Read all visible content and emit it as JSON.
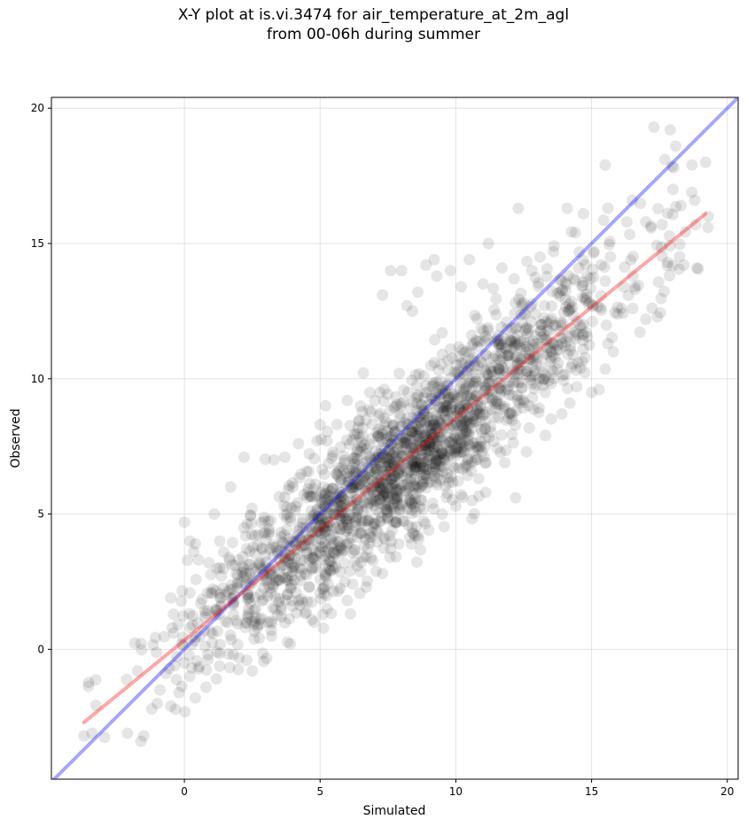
{
  "chart_data": {
    "type": "scatter",
    "title_lines": [
      "X-Y plot at is.vi.3474 for air_temperature_at_2m_agl",
      "from 00-06h during summer"
    ],
    "xlabel": "Simulated",
    "ylabel": "Observed",
    "xlim": [
      -4.9,
      20.4
    ],
    "ylim": [
      -4.8,
      20.4
    ],
    "xticks": [
      0,
      5,
      10,
      15,
      20
    ],
    "yticks": [
      0,
      5,
      10,
      15,
      20
    ],
    "grid": true,
    "point_color": "#000000",
    "point_opacity": 0.1,
    "reference_line": {
      "label": "1:1",
      "color": "#0000ff",
      "x": [
        -4.9,
        20.4
      ],
      "y": [
        -4.9,
        20.4
      ]
    },
    "fit_line": {
      "color": "#ff0000",
      "x": [
        -3.7,
        19.2
      ],
      "y": [
        -2.7,
        16.1
      ]
    },
    "point_model": {
      "n": 2000,
      "x_mean": 8.2,
      "x_sd": 3.9,
      "x_min": -4.0,
      "x_max": 19.3,
      "slope": 0.82,
      "intercept": 0.35,
      "residual_sd": 1.35
    },
    "points": [
      [
        -3.7,
        -3.2
      ],
      [
        -3.4,
        -3.1
      ],
      [
        -2.1,
        -3.1
      ],
      [
        -1.6,
        -3.4
      ],
      [
        -1.5,
        -3.2
      ],
      [
        -1.2,
        -2.2
      ],
      [
        -1.0,
        -2.0
      ],
      [
        -0.9,
        -1.5
      ],
      [
        -0.5,
        -2.1
      ],
      [
        -0.2,
        -1.6
      ],
      [
        0.0,
        4.7
      ],
      [
        0.2,
        4.0
      ],
      [
        -0.5,
        1.9
      ],
      [
        -0.4,
        1.3
      ],
      [
        -0.4,
        0.6
      ],
      [
        0.4,
        3.9
      ],
      [
        0.9,
        3.2
      ],
      [
        1.1,
        5.0
      ],
      [
        1.3,
        4.0
      ],
      [
        1.7,
        6.0
      ],
      [
        2.2,
        7.1
      ],
      [
        3.3,
        7.0
      ],
      [
        3.7,
        7.1
      ],
      [
        4.0,
        6.0
      ],
      [
        4.2,
        7.6
      ],
      [
        5.0,
        8.3
      ],
      [
        5.2,
        9.0
      ],
      [
        6.0,
        9.2
      ],
      [
        6.4,
        8.2
      ],
      [
        7.2,
        9.5
      ],
      [
        7.3,
        13.1
      ],
      [
        7.6,
        14.0
      ],
      [
        8.0,
        14.0
      ],
      [
        8.2,
        12.7
      ],
      [
        8.4,
        12.5
      ],
      [
        8.6,
        13.2
      ],
      [
        8.9,
        14.2
      ],
      [
        9.2,
        14.4
      ],
      [
        9.3,
        13.8
      ],
      [
        9.5,
        11.7
      ],
      [
        9.8,
        14.0
      ],
      [
        10.2,
        13.4
      ],
      [
        10.5,
        14.4
      ],
      [
        11.0,
        13.5
      ],
      [
        11.2,
        15.0
      ],
      [
        11.7,
        14.1
      ],
      [
        12.3,
        16.3
      ],
      [
        12.8,
        14.0
      ],
      [
        13.1,
        14.5
      ],
      [
        13.6,
        14.7
      ],
      [
        14.1,
        16.3
      ],
      [
        14.4,
        15.4
      ],
      [
        14.7,
        16.1
      ],
      [
        15.1,
        14.7
      ],
      [
        15.5,
        17.9
      ],
      [
        15.6,
        16.3
      ],
      [
        16.3,
        15.8
      ],
      [
        16.5,
        16.6
      ],
      [
        17.0,
        15.8
      ],
      [
        17.3,
        19.3
      ],
      [
        17.7,
        18.1
      ],
      [
        17.9,
        19.2
      ],
      [
        18.1,
        18.6
      ],
      [
        18.0,
        17.0
      ],
      [
        18.3,
        16.4
      ],
      [
        18.7,
        17.9
      ],
      [
        19.2,
        18.0
      ],
      [
        19.3,
        16.0
      ],
      [
        18.8,
        16.6
      ],
      [
        18.4,
        14.2
      ],
      [
        17.8,
        14.3
      ],
      [
        17.6,
        15.7
      ],
      [
        17.0,
        12.2
      ],
      [
        16.6,
        13.3
      ],
      [
        16.1,
        12.6
      ],
      [
        15.8,
        11.0
      ],
      [
        15.6,
        11.3
      ],
      [
        15.0,
        9.5
      ],
      [
        14.6,
        10.4
      ],
      [
        14.2,
        9.1
      ],
      [
        13.9,
        8.7
      ],
      [
        13.3,
        7.9
      ],
      [
        12.6,
        7.3
      ],
      [
        12.2,
        5.6
      ],
      [
        11.8,
        6.9
      ],
      [
        11.1,
        5.8
      ],
      [
        10.6,
        5.5
      ],
      [
        10.0,
        5.3
      ],
      [
        9.5,
        5.0
      ],
      [
        9.0,
        4.4
      ],
      [
        8.5,
        4.2
      ],
      [
        7.9,
        3.9
      ],
      [
        7.3,
        2.8
      ],
      [
        6.7,
        2.3
      ],
      [
        6.0,
        1.8
      ],
      [
        5.3,
        2.4
      ],
      [
        4.7,
        1.1
      ],
      [
        4.2,
        1.8
      ],
      [
        3.9,
        0.2
      ],
      [
        3.2,
        0.7
      ],
      [
        2.5,
        -0.8
      ],
      [
        1.8,
        -0.2
      ],
      [
        1.2,
        -0.1
      ],
      [
        0.8,
        -1.4
      ],
      [
        0.4,
        -1.8
      ],
      [
        0.2,
        -1.0
      ],
      [
        0.0,
        -0.5
      ],
      [
        -0.1,
        0.2
      ],
      [
        0.3,
        0.9
      ],
      [
        0.6,
        1.7
      ]
    ]
  }
}
